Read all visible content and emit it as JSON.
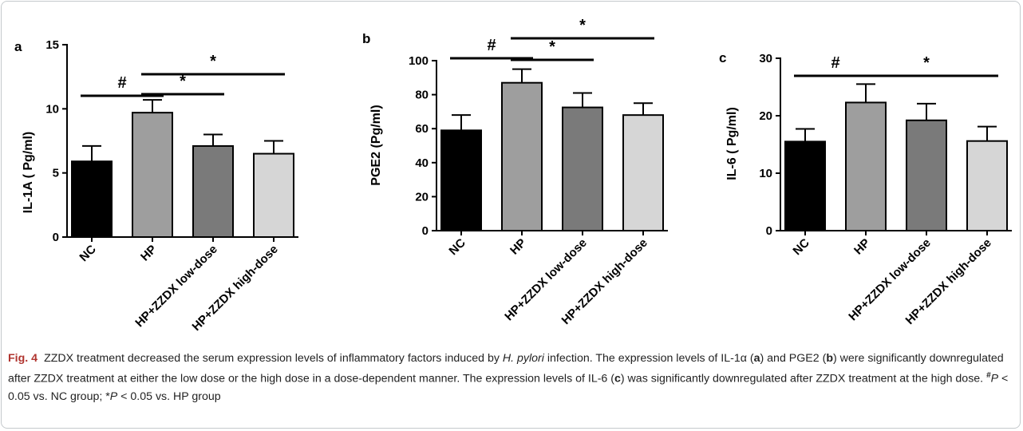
{
  "chart_data": [
    {
      "type": "bar",
      "panel": "a",
      "ylabel": "IL-1A ( Pg/ml)",
      "ylim": [
        0,
        15
      ],
      "yticks": [
        0,
        5,
        10,
        15
      ],
      "categories": [
        "NC",
        "HP",
        "HP+ZZDX low-dose",
        "HP+ZZDX high-dose"
      ],
      "values": [
        5.9,
        9.7,
        7.1,
        6.5
      ],
      "errors": [
        1.2,
        1.0,
        0.9,
        1.0
      ],
      "bar_colors": [
        "#000000",
        "#9e9e9e",
        "#7a7a7a",
        "#d6d6d6"
      ],
      "significance": [
        {
          "from": 0,
          "to": 1,
          "label": "#"
        },
        {
          "from": 1,
          "to": 2,
          "label": "*"
        },
        {
          "from": 1,
          "to": 3,
          "label": "*"
        }
      ]
    },
    {
      "type": "bar",
      "panel": "b",
      "ylabel": "PGE2 (Pg/ml)",
      "ylim": [
        0,
        100
      ],
      "yticks": [
        0,
        20,
        40,
        60,
        80,
        100
      ],
      "categories": [
        "NC",
        "HP",
        "HP+ZZDX low-dose",
        "HP+ZZDX high-dose"
      ],
      "values": [
        59,
        87,
        72.5,
        68
      ],
      "errors": [
        9,
        8,
        8.5,
        7
      ],
      "bar_colors": [
        "#000000",
        "#9e9e9e",
        "#7a7a7a",
        "#d6d6d6"
      ],
      "significance": [
        {
          "from": 0,
          "to": 1,
          "label": "#"
        },
        {
          "from": 1,
          "to": 2,
          "label": "*"
        },
        {
          "from": 1,
          "to": 3,
          "label": "*"
        }
      ]
    },
    {
      "type": "bar",
      "panel": "c",
      "ylabel": "IL-6 ( Pg/ml)",
      "ylim": [
        0,
        30
      ],
      "yticks": [
        0,
        10,
        20,
        30
      ],
      "categories": [
        "NC",
        "HP",
        "HP+ZZDX low-dose",
        "HP+ZZDX high-dose"
      ],
      "values": [
        15.5,
        22.3,
        19.2,
        15.6
      ],
      "errors": [
        2.2,
        3.2,
        2.9,
        2.5
      ],
      "bar_colors": [
        "#000000",
        "#9e9e9e",
        "#7a7a7a",
        "#d6d6d6"
      ],
      "significance": [
        {
          "from": 0,
          "to": 1,
          "label": "#"
        },
        {
          "from": 1,
          "to": 3,
          "label": "*"
        }
      ]
    }
  ],
  "caption": {
    "fig_label": "Fig. 4",
    "s1": "ZZDX treatment decreased the serum expression levels of inflammatory factors induced by ",
    "s1_italic": "H. pylori",
    "s2": " infection. The expression levels of IL-1α (",
    "s2_bold": "a",
    "s3": ") and PGE2 (",
    "s3_bold": "b",
    "s4": ") were significantly downregulated after ZZDX treatment at either the low dose or the high dose in a dose-dependent manner. The expression levels of IL-6 (",
    "s4_bold": "c",
    "s5": ") was significantly downregulated after ZZDX treatment at the high dose. ",
    "s5_sup": "#",
    "s5_p": "P",
    "s6": " < 0.05 vs. NC group; *",
    "s6_p": "P",
    "s7": " < 0.05 vs. HP group"
  }
}
